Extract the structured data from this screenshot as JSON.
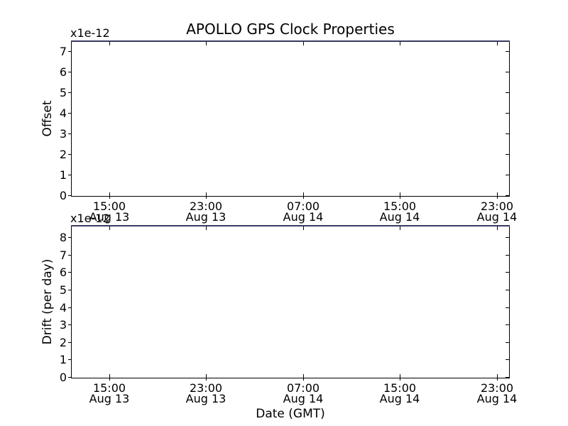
{
  "figure_title": "APOLLO GPS Clock Properties",
  "x_axis_title": "Date (GMT)",
  "background_color": "#ffffff",
  "text_color": "#000000",
  "spine_color": "#000000",
  "chart_data": [
    {
      "type": "line",
      "subplot": "top",
      "ylabel": "Offset",
      "y_offset_text": "x1e-12",
      "ylim": [
        0,
        7.5
      ],
      "yticks": [
        0,
        1,
        2,
        3,
        4,
        5,
        6,
        7
      ],
      "grid": false,
      "legend": null,
      "xticks": [
        {
          "frac": 0.0858,
          "time": "15:00",
          "date": "Aug 13"
        },
        {
          "frac": 0.3074,
          "time": "23:00",
          "date": "Aug 13"
        },
        {
          "frac": 0.5291,
          "time": "07:00",
          "date": "Aug 14"
        },
        {
          "frac": 0.7508,
          "time": "15:00",
          "date": "Aug 14"
        },
        {
          "frac": 0.9725,
          "time": "23:00",
          "date": "Aug 14"
        }
      ],
      "series": [
        {
          "name": "Offset",
          "color": "#3a3a64",
          "y_frac": 1.0,
          "shape": "flat horizontal line along the entire top edge of the axes (data at/above ymax 7.5e-12, clipped by axis limit)"
        }
      ]
    },
    {
      "type": "line",
      "subplot": "bottom",
      "ylabel": "Drift (per day)",
      "y_offset_text": "x1e-12",
      "ylim": [
        0,
        8.7
      ],
      "yticks": [
        0,
        1,
        2,
        3,
        4,
        5,
        6,
        7,
        8
      ],
      "grid": false,
      "legend": null,
      "xticks": [
        {
          "frac": 0.0858,
          "time": "15:00",
          "date": "Aug 13"
        },
        {
          "frac": 0.3074,
          "time": "23:00",
          "date": "Aug 13"
        },
        {
          "frac": 0.5291,
          "time": "07:00",
          "date": "Aug 14"
        },
        {
          "frac": 0.7508,
          "time": "15:00",
          "date": "Aug 14"
        },
        {
          "frac": 0.9725,
          "time": "23:00",
          "date": "Aug 14"
        }
      ],
      "series": [
        {
          "name": "Drift",
          "color": "#3a3a64",
          "y_frac": 1.0,
          "shape": "flat horizontal line along the entire top edge of the axes (data at/above ymax 8.7e-12, clipped by axis limit)"
        }
      ]
    }
  ]
}
